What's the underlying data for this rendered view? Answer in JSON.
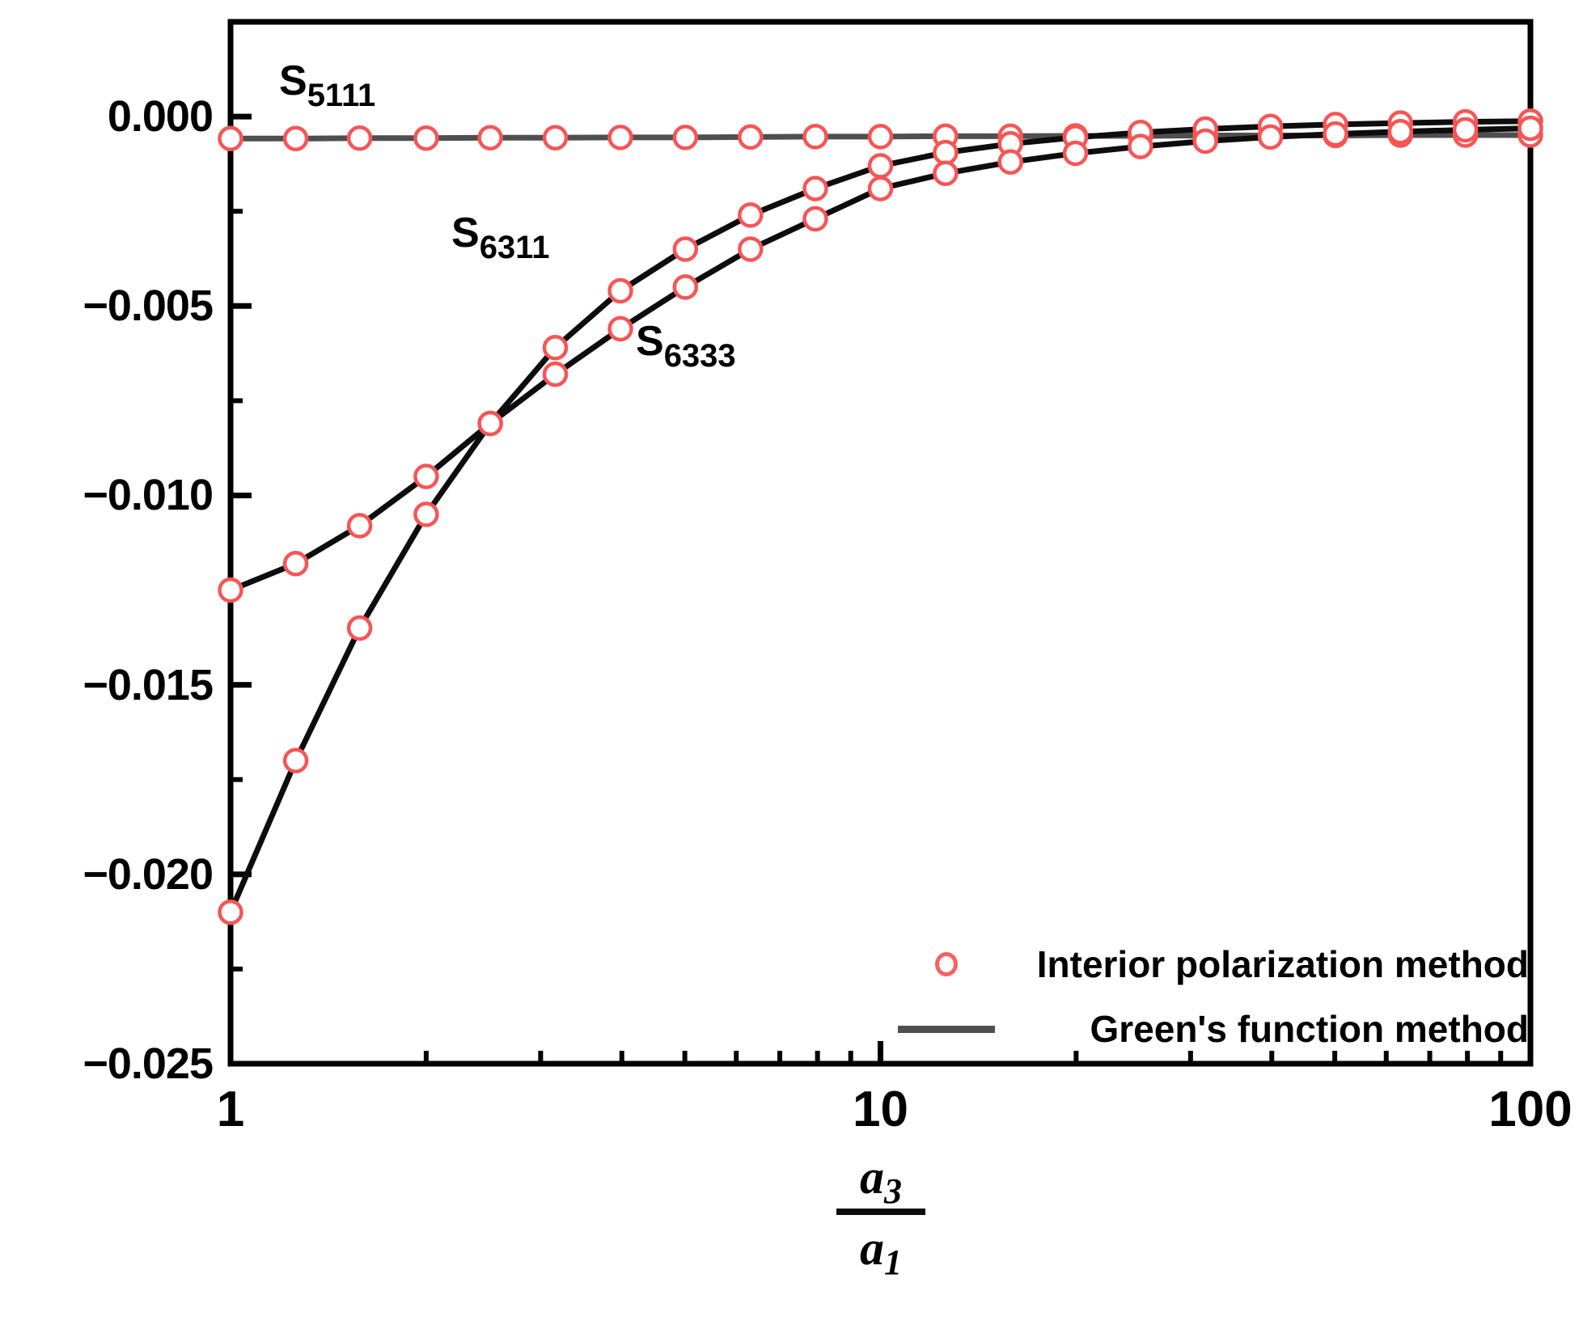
{
  "chart_data": {
    "type": "line",
    "title": "",
    "x_axis": {
      "scale": "log",
      "min": 1,
      "max": 100,
      "major_ticks": [
        1,
        10,
        100
      ],
      "tick_labels": [
        "1",
        "10",
        "100"
      ],
      "minor_ticks": [
        2,
        3,
        4,
        5,
        6,
        7,
        8,
        9,
        20,
        30,
        40,
        50,
        60,
        70,
        80,
        90
      ],
      "label": {
        "num_main": "a",
        "num_sub": "3",
        "den_main": "a",
        "den_sub": "1"
      }
    },
    "y_axis": {
      "min": -0.025,
      "max": 0.0025,
      "major_ticks": [
        0,
        -0.005,
        -0.01,
        -0.015,
        -0.02,
        -0.025
      ],
      "tick_labels": [
        "0.000",
        "−0.005",
        "−0.010",
        "−0.015",
        "−0.020",
        "−0.025"
      ],
      "minor_ticks": [
        -0.0025,
        -0.0075,
        -0.0125,
        -0.0175,
        -0.0225
      ]
    },
    "grid": false,
    "x": [
      1,
      1.26,
      1.58,
      2,
      2.51,
      3.16,
      3.98,
      5.01,
      6.31,
      7.94,
      10,
      12.59,
      15.85,
      19.95,
      25.12,
      31.62,
      39.81,
      50.12,
      63.1,
      79.43,
      100
    ],
    "series": [
      {
        "id": "S5111",
        "label_main": "S",
        "label_sub": "5111",
        "line_color": "#4f4f4f",
        "values": [
          -0.00058,
          -0.00058,
          -0.00057,
          -0.00057,
          -0.00056,
          -0.00056,
          -0.00055,
          -0.00055,
          -0.00054,
          -0.00053,
          -0.00053,
          -0.00052,
          -0.00052,
          -0.00051,
          -0.00051,
          -0.0005,
          -0.0005,
          -0.0005,
          -0.00049,
          -0.00049,
          -0.00049
        ]
      },
      {
        "id": "S6311",
        "label_main": "S",
        "label_sub": "6311",
        "line_color": "#0d0d0d",
        "values": [
          -0.021,
          -0.017,
          -0.0135,
          -0.0105,
          -0.0081,
          -0.0061,
          -0.0046,
          -0.0035,
          -0.0026,
          -0.0019,
          -0.0013,
          -0.00095,
          -0.00072,
          -0.00055,
          -0.00042,
          -0.00033,
          -0.00026,
          -0.00021,
          -0.00017,
          -0.00014,
          -0.00012
        ]
      },
      {
        "id": "S6333",
        "label_main": "S",
        "label_sub": "6333",
        "line_color": "#0d0d0d",
        "values": [
          -0.0125,
          -0.0118,
          -0.0108,
          -0.0095,
          -0.0081,
          -0.0068,
          -0.0056,
          -0.0045,
          -0.0035,
          -0.0027,
          -0.0019,
          -0.0015,
          -0.0012,
          -0.00097,
          -0.00079,
          -0.00065,
          -0.00054,
          -0.00046,
          -0.0004,
          -0.00035,
          -0.00031
        ]
      }
    ],
    "marker": {
      "shape": "open-circle",
      "color": "#f75555",
      "fill": "#ffffff"
    },
    "frame_color": "#000000",
    "legend": {
      "position": "bottom-right",
      "items": [
        {
          "marker": "circle",
          "label": "Interior polarization method"
        },
        {
          "marker": "line",
          "label": "Green's function method"
        }
      ]
    }
  }
}
